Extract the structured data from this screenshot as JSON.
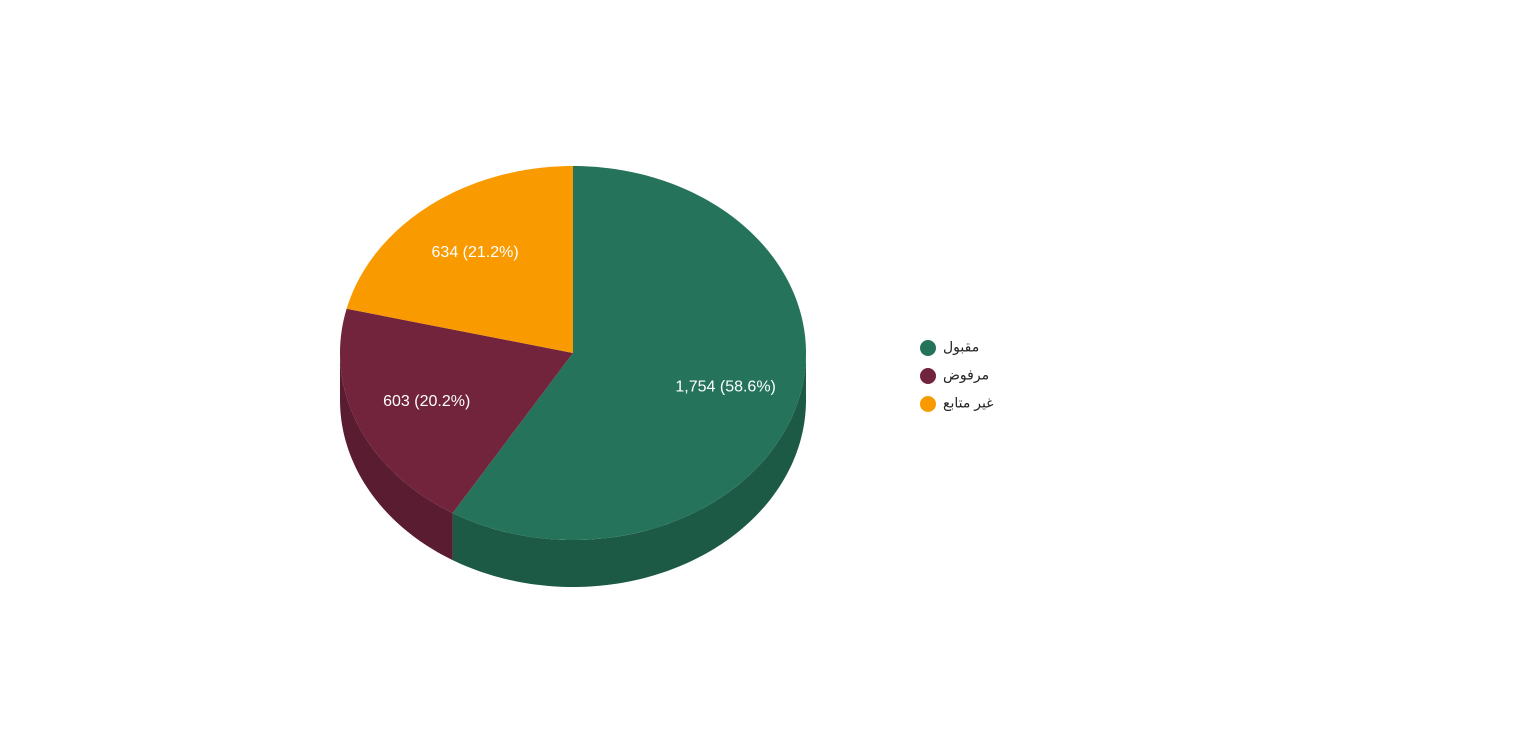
{
  "chart_data": {
    "type": "pie",
    "categories": [
      "مقبول",
      "مرفوض",
      "غير متابع"
    ],
    "values": [
      1754,
      603,
      634
    ],
    "value_labels": [
      "1,754 (58.6%)",
      "603 (20.2%)",
      "634 (21.2%)"
    ],
    "colors": [
      "#24735a",
      "#72243d",
      "#f99a00"
    ],
    "legend": "right"
  }
}
